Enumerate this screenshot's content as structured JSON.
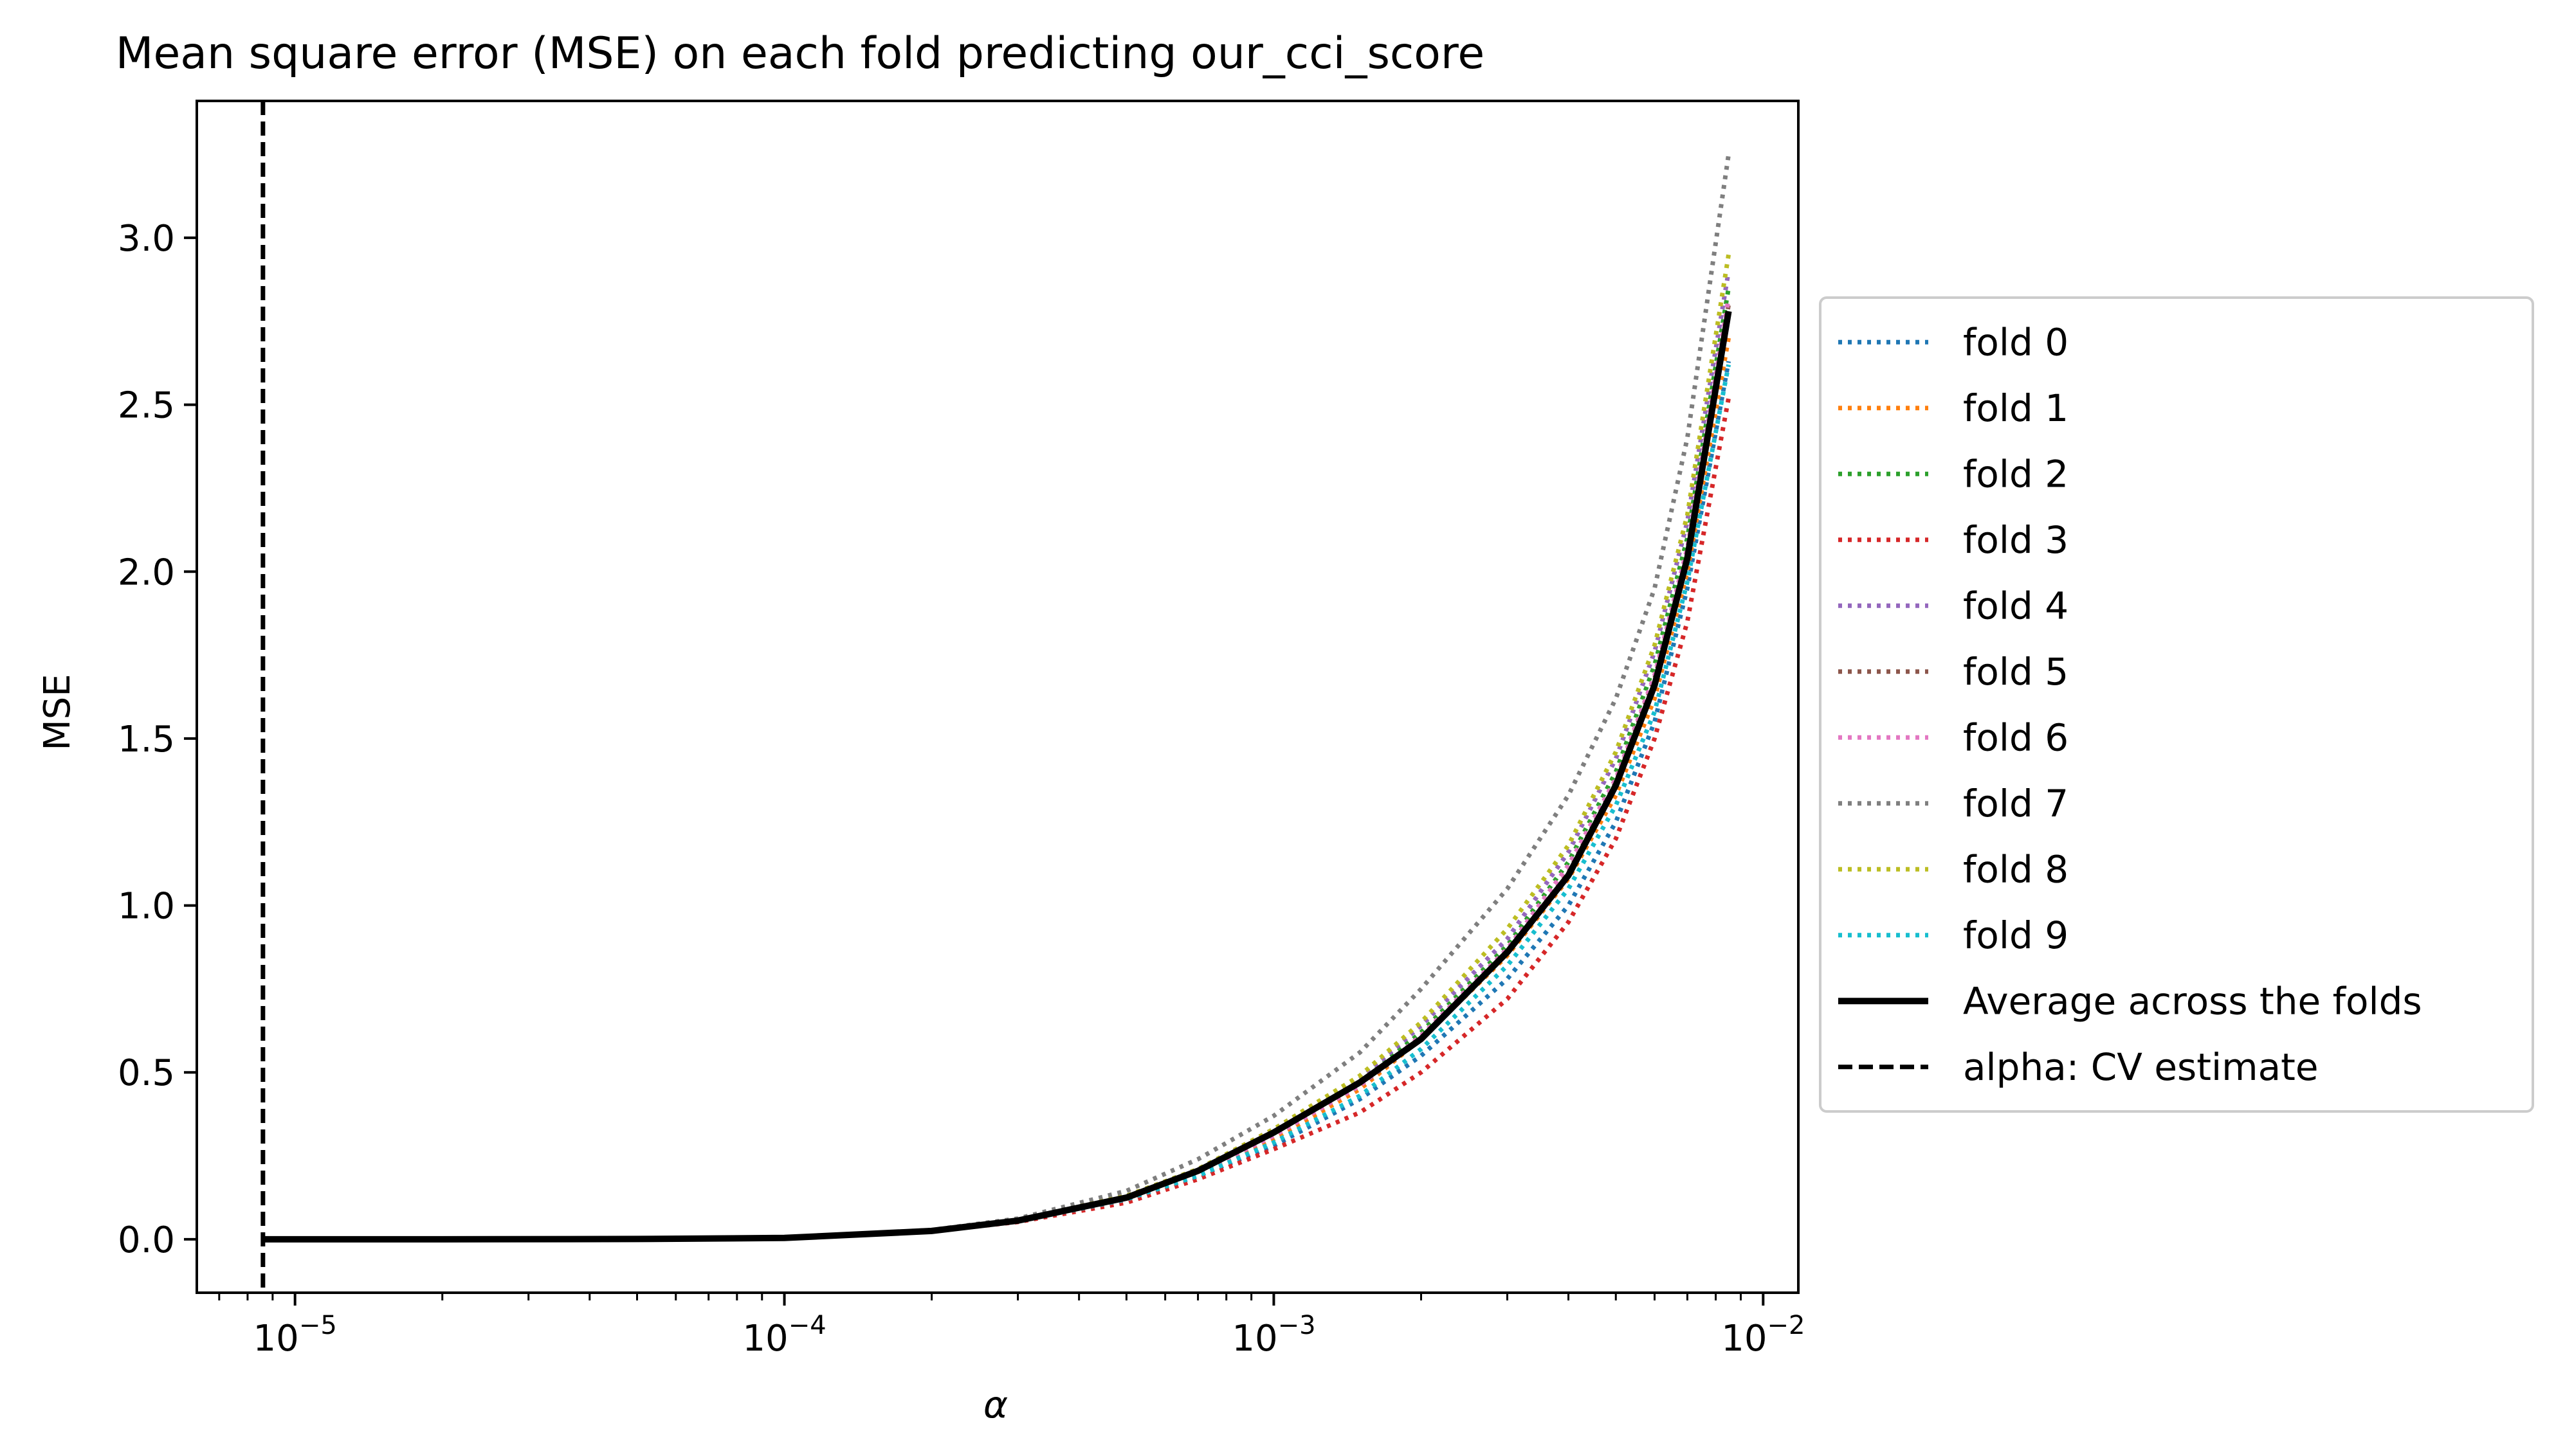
{
  "chart_data": {
    "type": "line",
    "title": "Mean square error (MSE) on each fold predicting our_cci_score",
    "xlabel": "α",
    "ylabel": "MSE",
    "xscale": "log",
    "xlim": [
      6.3e-06,
      0.0118
    ],
    "ylim": [
      -0.16,
      3.41
    ],
    "x_ticks": [
      {
        "value": 1e-05,
        "base": "10",
        "exp": "−5"
      },
      {
        "value": 0.0001,
        "base": "10",
        "exp": "−4"
      },
      {
        "value": 0.001,
        "base": "10",
        "exp": "−3"
      },
      {
        "value": 0.01,
        "base": "10",
        "exp": "−2"
      }
    ],
    "y_ticks": [
      "0.0",
      "0.5",
      "1.0",
      "1.5",
      "2.0",
      "2.5",
      "3.0"
    ],
    "grid": false,
    "legend_position": "outside-right",
    "x": [
      8.6e-06,
      2e-05,
      5e-05,
      0.0001,
      0.0002,
      0.0003,
      0.0005,
      0.0007,
      0.001,
      0.0015,
      0.002,
      0.003,
      0.004,
      0.005,
      0.006,
      0.007,
      0.0085
    ],
    "series": [
      {
        "name": "fold 0",
        "color": "#1f77b4",
        "style": "dotted",
        "values": [
          0.0,
          0.0,
          0.001,
          0.004,
          0.025,
          0.055,
          0.12,
          0.19,
          0.28,
          0.42,
          0.55,
          0.78,
          1.0,
          1.25,
          1.55,
          1.95,
          2.63
        ]
      },
      {
        "name": "fold 1",
        "color": "#ff7f0e",
        "style": "dotted",
        "values": [
          0.0,
          0.0,
          0.001,
          0.004,
          0.025,
          0.055,
          0.12,
          0.2,
          0.3,
          0.45,
          0.6,
          0.85,
          1.08,
          1.33,
          1.62,
          2.0,
          2.7
        ]
      },
      {
        "name": "fold 2",
        "color": "#2ca02c",
        "style": "dotted",
        "values": [
          0.0,
          0.0,
          0.001,
          0.004,
          0.026,
          0.056,
          0.13,
          0.21,
          0.32,
          0.47,
          0.62,
          0.88,
          1.13,
          1.4,
          1.72,
          2.1,
          2.85
        ]
      },
      {
        "name": "fold 3",
        "color": "#d62728",
        "style": "dotted",
        "values": [
          0.0,
          0.0,
          0.001,
          0.004,
          0.024,
          0.052,
          0.11,
          0.18,
          0.27,
          0.38,
          0.5,
          0.72,
          0.95,
          1.2,
          1.5,
          1.85,
          2.52
        ]
      },
      {
        "name": "fold 4",
        "color": "#9467bd",
        "style": "dotted",
        "values": [
          0.0,
          0.0,
          0.001,
          0.004,
          0.026,
          0.057,
          0.13,
          0.21,
          0.33,
          0.48,
          0.64,
          0.9,
          1.16,
          1.44,
          1.76,
          2.15,
          2.9
        ]
      },
      {
        "name": "fold 5",
        "color": "#8c564b",
        "style": "dotted",
        "values": [
          0.0,
          0.0,
          0.001,
          0.004,
          0.025,
          0.055,
          0.12,
          0.2,
          0.31,
          0.46,
          0.6,
          0.86,
          1.1,
          1.37,
          1.68,
          2.05,
          2.8
        ]
      },
      {
        "name": "fold 6",
        "color": "#e377c2",
        "style": "dotted",
        "values": [
          0.0,
          0.0,
          0.001,
          0.004,
          0.025,
          0.055,
          0.12,
          0.2,
          0.31,
          0.46,
          0.61,
          0.87,
          1.12,
          1.38,
          1.69,
          2.07,
          2.82
        ]
      },
      {
        "name": "fold 7",
        "color": "#7f7f7f",
        "style": "dotted",
        "values": [
          0.0,
          0.0,
          0.001,
          0.005,
          0.028,
          0.062,
          0.145,
          0.24,
          0.37,
          0.56,
          0.75,
          1.05,
          1.33,
          1.62,
          1.95,
          2.4,
          3.25
        ]
      },
      {
        "name": "fold 8",
        "color": "#bcbd22",
        "style": "dotted",
        "values": [
          0.0,
          0.0,
          0.001,
          0.004,
          0.026,
          0.057,
          0.13,
          0.21,
          0.33,
          0.49,
          0.65,
          0.93,
          1.18,
          1.46,
          1.78,
          2.17,
          2.95
        ]
      },
      {
        "name": "fold 9",
        "color": "#17becf",
        "style": "dotted",
        "values": [
          0.0,
          0.0,
          0.001,
          0.004,
          0.025,
          0.054,
          0.12,
          0.19,
          0.29,
          0.43,
          0.57,
          0.82,
          1.05,
          1.3,
          1.58,
          1.97,
          2.62
        ]
      },
      {
        "name": "Average across the folds",
        "color": "#000000",
        "style": "solid",
        "values": [
          0.0,
          0.0,
          0.001,
          0.004,
          0.025,
          0.056,
          0.125,
          0.205,
          0.32,
          0.47,
          0.6,
          0.86,
          1.09,
          1.36,
          1.66,
          2.04,
          2.78
        ]
      }
    ],
    "vline": {
      "name": "alpha: CV estimate",
      "x": 8.6e-06,
      "color": "#000000",
      "style": "dashed"
    }
  }
}
